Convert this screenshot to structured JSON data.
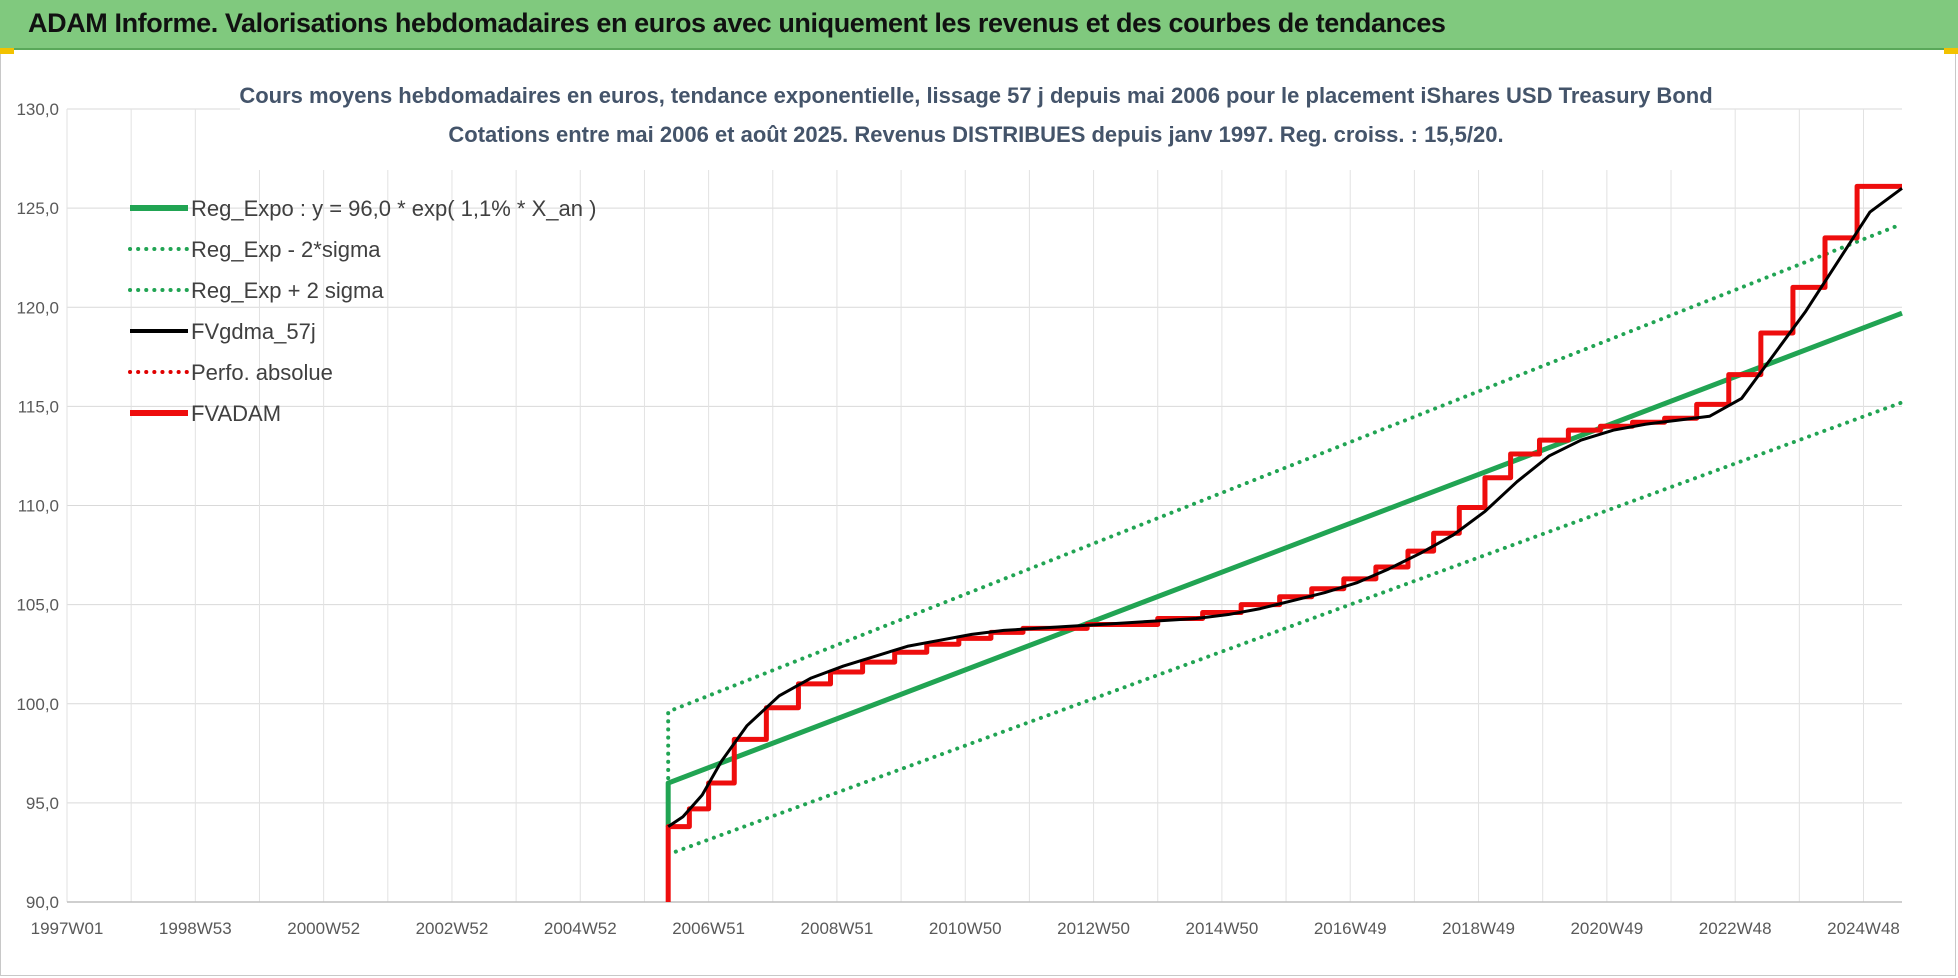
{
  "banner": {
    "title": "ADAM Informe. Valorisations hebdomadaires en euros avec uniquement les revenus et des courbes de tendances"
  },
  "chart_data": {
    "type": "line",
    "title": "Cours moyens hebdomadaires en euros, tendance exponentielle, lissage 57 j depuis mai 2006 pour le placement iShares USD Treasury Bond",
    "subtitle": "Cotations entre mai 2006 et août 2025. Revenus DISTRIBUES depuis janv 1997. Reg. croiss. : 15,5/20.",
    "xlabel": "",
    "ylabel": "",
    "xlim": [
      1997.0,
      2025.6
    ],
    "ylim": [
      90,
      130
    ],
    "y_ticks": [
      "90,0",
      "95,0",
      "100,0",
      "105,0",
      "110,0",
      "115,0",
      "120,0",
      "125,0",
      "130,0"
    ],
    "x_ticks": [
      {
        "label": "1997W01",
        "x": 1997.0
      },
      {
        "label": "1998W53",
        "x": 1999.0
      },
      {
        "label": "2000W52",
        "x": 2001.0
      },
      {
        "label": "2002W52",
        "x": 2003.0
      },
      {
        "label": "2004W52",
        "x": 2005.0
      },
      {
        "label": "2006W51",
        "x": 2007.0
      },
      {
        "label": "2008W51",
        "x": 2009.0
      },
      {
        "label": "2010W50",
        "x": 2011.0
      },
      {
        "label": "2012W50",
        "x": 2013.0
      },
      {
        "label": "2014W50",
        "x": 2015.0
      },
      {
        "label": "2016W49",
        "x": 2017.0
      },
      {
        "label": "2018W49",
        "x": 2019.0
      },
      {
        "label": "2020W49",
        "x": 2021.0
      },
      {
        "label": "2022W48",
        "x": 2023.0
      },
      {
        "label": "2024W48",
        "x": 2025.0
      }
    ],
    "grid": true,
    "legend_position": "top-left",
    "series": [
      {
        "name": "Reg_Expo : y = 96,0 * exp( 1,1% *  X_an )",
        "color": "#21a453",
        "style": "solid",
        "width": 5,
        "x": [
          2006.37,
          2006.37,
          2025.6
        ],
        "y": [
          93.8,
          96.0,
          119.7
        ]
      },
      {
        "name": "Reg_Exp - 2*sigma",
        "color": "#21a453",
        "style": "dotted",
        "width": 4,
        "x": [
          2006.37,
          2025.6
        ],
        "y": [
          92.4,
          115.2
        ]
      },
      {
        "name": "Reg_Exp + 2 sigma",
        "color": "#21a453",
        "style": "dotted",
        "width": 4,
        "x": [
          2006.37,
          2006.37,
          2025.6
        ],
        "y": [
          93.8,
          99.6,
          124.2
        ]
      },
      {
        "name": "FVgdma_57j",
        "color": "#000000",
        "style": "solid",
        "width": 3,
        "x": [
          2006.37,
          2006.6,
          2006.9,
          2007.2,
          2007.6,
          2008.1,
          2008.6,
          2009.1,
          2009.6,
          2010.1,
          2010.6,
          2011.1,
          2011.6,
          2012.1,
          2012.6,
          2013.1,
          2013.6,
          2014.1,
          2014.6,
          2015.1,
          2015.6,
          2016.1,
          2016.6,
          2017.1,
          2017.6,
          2018.1,
          2018.6,
          2019.1,
          2019.6,
          2020.1,
          2020.6,
          2021.1,
          2021.6,
          2022.1,
          2022.6,
          2023.1,
          2023.6,
          2024.1,
          2024.6,
          2025.1,
          2025.6
        ],
        "y": [
          93.8,
          94.3,
          95.4,
          97.1,
          98.9,
          100.4,
          101.3,
          101.9,
          102.4,
          102.9,
          103.2,
          103.5,
          103.7,
          103.8,
          103.9,
          104.0,
          104.1,
          104.2,
          104.3,
          104.5,
          104.8,
          105.2,
          105.6,
          106.1,
          106.8,
          107.6,
          108.5,
          109.7,
          111.2,
          112.5,
          113.3,
          113.8,
          114.1,
          114.3,
          114.5,
          115.4,
          117.6,
          119.8,
          122.3,
          124.8,
          126.0
        ]
      },
      {
        "name": "Perfo. absolue",
        "color": "#e00000",
        "style": "dotted",
        "width": 3,
        "x": [],
        "y": []
      },
      {
        "name": "FVADAM",
        "color": "#ee0d0d",
        "style": "solid",
        "width": 5,
        "step": true,
        "x": [
          2006.37,
          2006.37,
          2006.7,
          2007.0,
          2007.4,
          2007.9,
          2008.4,
          2008.9,
          2009.4,
          2009.9,
          2010.4,
          2010.9,
          2011.4,
          2011.9,
          2012.9,
          2014.0,
          2014.7,
          2015.3,
          2015.9,
          2016.4,
          2016.9,
          2017.4,
          2017.9,
          2018.3,
          2018.7,
          2019.1,
          2019.5,
          2019.95,
          2020.4,
          2020.9,
          2021.4,
          2021.9,
          2022.4,
          2022.9,
          2023.4,
          2023.9,
          2024.4,
          2024.9,
          2025.6
        ],
        "y": [
          90.0,
          93.8,
          94.7,
          96.0,
          98.2,
          99.8,
          101.0,
          101.6,
          102.1,
          102.6,
          103.0,
          103.3,
          103.6,
          103.8,
          104.0,
          104.3,
          104.6,
          105.0,
          105.4,
          105.8,
          106.3,
          106.9,
          107.7,
          108.6,
          109.9,
          111.4,
          112.6,
          113.3,
          113.8,
          114.0,
          114.2,
          114.4,
          115.1,
          116.6,
          118.7,
          121.0,
          123.5,
          126.1,
          126.1
        ]
      }
    ]
  }
}
